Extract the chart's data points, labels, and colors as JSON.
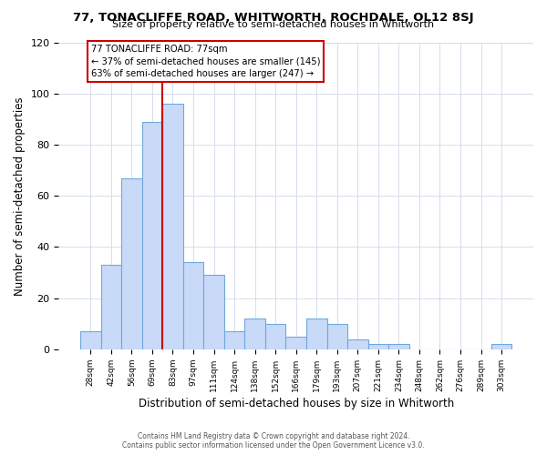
{
  "title": "77, TONACLIFFE ROAD, WHITWORTH, ROCHDALE, OL12 8SJ",
  "subtitle": "Size of property relative to semi-detached houses in Whitworth",
  "xlabel": "Distribution of semi-detached houses by size in Whitworth",
  "ylabel": "Number of semi-detached properties",
  "bar_labels": [
    "28sqm",
    "42sqm",
    "56sqm",
    "69sqm",
    "83sqm",
    "97sqm",
    "111sqm",
    "124sqm",
    "138sqm",
    "152sqm",
    "166sqm",
    "179sqm",
    "193sqm",
    "207sqm",
    "221sqm",
    "234sqm",
    "248sqm",
    "262sqm",
    "276sqm",
    "289sqm",
    "303sqm"
  ],
  "bar_values": [
    7,
    33,
    67,
    89,
    96,
    34,
    29,
    7,
    12,
    10,
    5,
    12,
    10,
    4,
    2,
    2,
    0,
    0,
    0,
    0,
    2
  ],
  "bar_color": "#c9daf8",
  "bar_edge_color": "#6fa8dc",
  "annotation_title": "77 TONACLIFFE ROAD: 77sqm",
  "annotation_line1": "← 37% of semi-detached houses are smaller (145)",
  "annotation_line2": "63% of semi-detached houses are larger (247) →",
  "annotation_box_edge": "#cc0000",
  "vline_color": "#cc0000",
  "vline_x": 3.5,
  "ylim": [
    0,
    120
  ],
  "yticks": [
    0,
    20,
    40,
    60,
    80,
    100,
    120
  ],
  "footer1": "Contains HM Land Registry data © Crown copyright and database right 2024.",
  "footer2": "Contains public sector information licensed under the Open Government Licence v3.0.",
  "bg_color": "#ffffff",
  "grid_color": "#d0d8e8"
}
